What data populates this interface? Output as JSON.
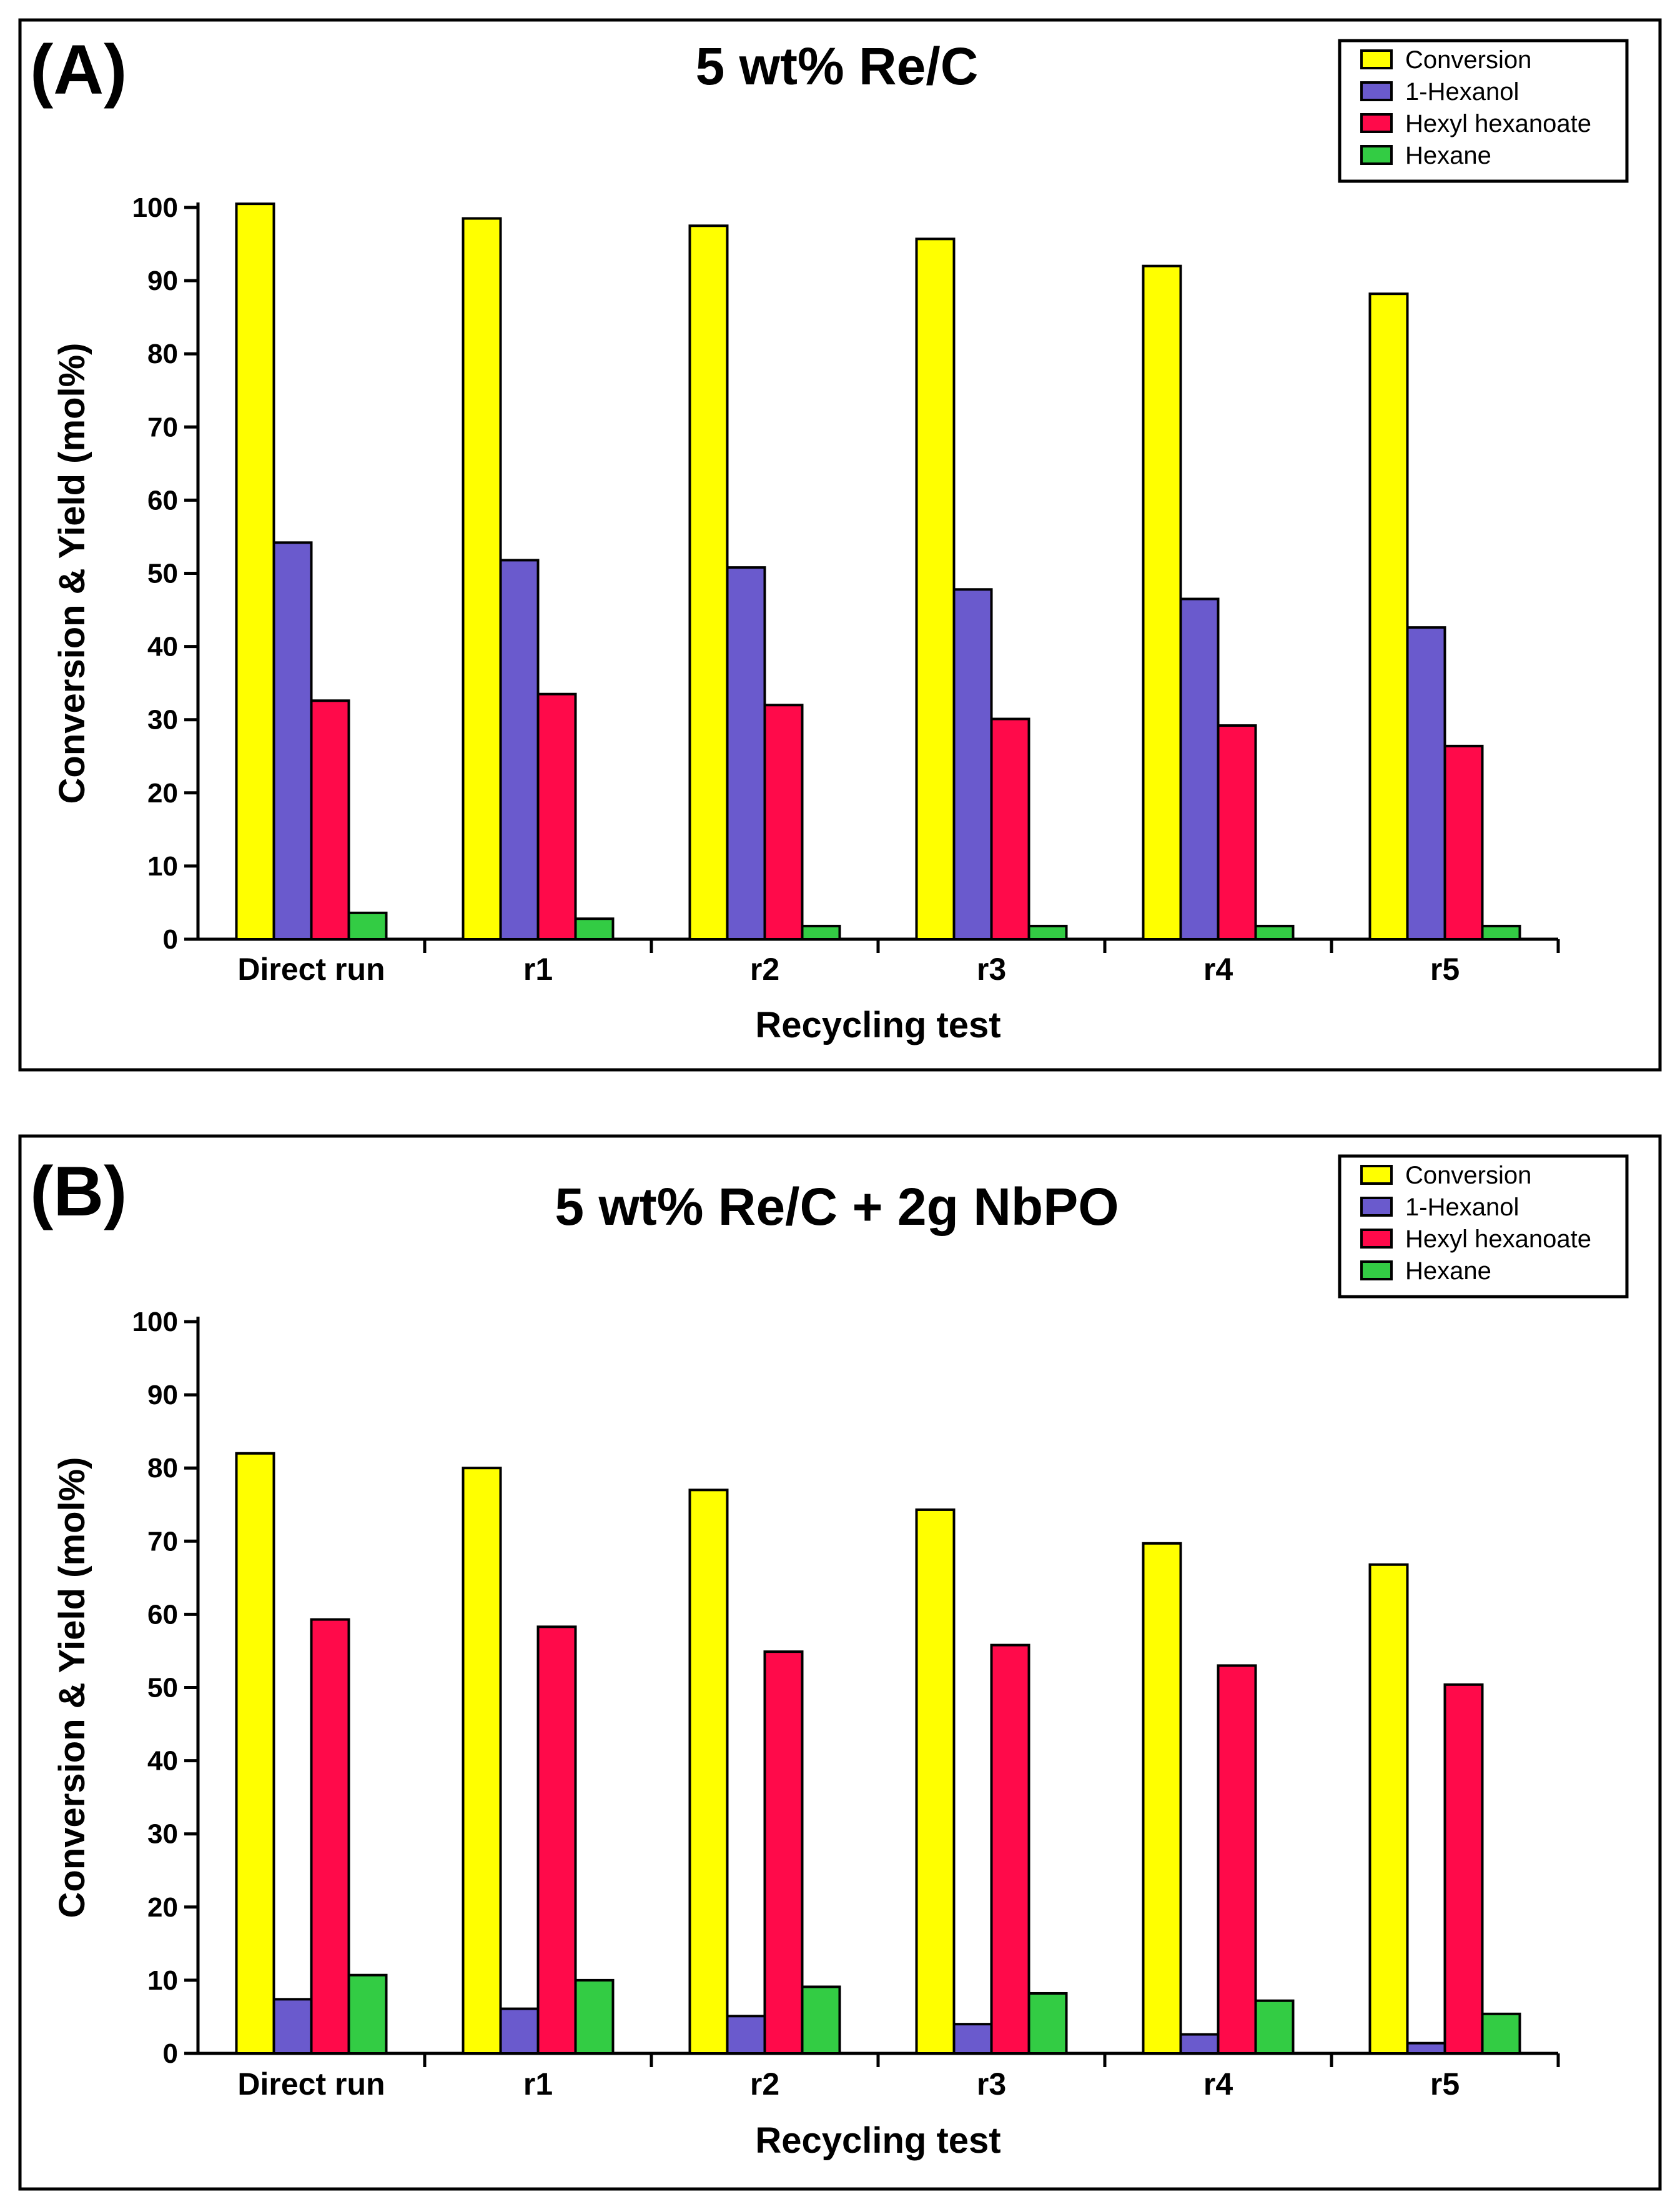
{
  "chart_data": [
    {
      "type": "bar",
      "panel_label": "(A)",
      "title": "5 wt% Re/C",
      "categories": [
        "Direct run",
        "r1",
        "r2",
        "r3",
        "r4",
        "r5"
      ],
      "series": [
        {
          "name": "Conversion",
          "color": "#FFFF00",
          "values": [
            100.5,
            98.5,
            97.5,
            95.7,
            92.0,
            88.2
          ]
        },
        {
          "name": "1-Hexanol",
          "color": "#6A5ACD",
          "values": [
            54.2,
            51.8,
            50.8,
            47.8,
            46.5,
            42.6
          ]
        },
        {
          "name": "Hexyl hexanoate",
          "color": "#FF0A4A",
          "values": [
            32.6,
            33.5,
            32.0,
            30.1,
            29.2,
            26.4
          ]
        },
        {
          "name": "Hexane",
          "color": "#33CC44",
          "values": [
            3.6,
            2.8,
            1.8,
            1.8,
            1.8,
            1.8
          ]
        }
      ],
      "xlabel": "Recycling test",
      "ylabel": "Conversion & Yield (mol%)",
      "ylim": [
        0,
        100
      ],
      "yticks": [
        0,
        10,
        20,
        30,
        40,
        50,
        60,
        70,
        80,
        90,
        100
      ],
      "legend_position": "top-right"
    },
    {
      "type": "bar",
      "panel_label": "(B)",
      "title": "5 wt% Re/C + 2g NbPO",
      "categories": [
        "Direct run",
        "r1",
        "r2",
        "r3",
        "r4",
        "r5"
      ],
      "series": [
        {
          "name": "Conversion",
          "color": "#FFFF00",
          "values": [
            82.0,
            80.0,
            77.0,
            74.3,
            69.7,
            66.8
          ]
        },
        {
          "name": "1-Hexanol",
          "color": "#6A5ACD",
          "values": [
            7.4,
            6.1,
            5.1,
            4.0,
            2.6,
            1.4
          ]
        },
        {
          "name": "Hexyl hexanoate",
          "color": "#FF0A4A",
          "values": [
            59.3,
            58.3,
            54.9,
            55.8,
            53.0,
            50.4
          ]
        },
        {
          "name": "Hexane",
          "color": "#33CC44",
          "values": [
            10.7,
            10.0,
            9.1,
            8.2,
            7.2,
            5.4
          ]
        }
      ],
      "xlabel": "Recycling test",
      "ylabel": "Conversion & Yield (mol%)",
      "ylim": [
        0,
        100
      ],
      "yticks": [
        0,
        10,
        20,
        30,
        40,
        50,
        60,
        70,
        80,
        90,
        100
      ],
      "legend_position": "top-right"
    }
  ]
}
